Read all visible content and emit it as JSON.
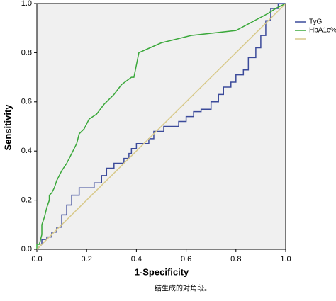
{
  "chart_data": {
    "type": "line",
    "xlabel": "1-Specificity",
    "ylabel": "Sensitivity",
    "caption": "结生成的对角段。",
    "xlim": [
      0,
      1
    ],
    "ylim": [
      0,
      1
    ],
    "xticks": [
      {
        "value": 0,
        "label": "0.0"
      },
      0.2,
      0.4,
      0.6,
      0.8,
      {
        "value": 1,
        "label": "1.0"
      }
    ],
    "yticks": [
      {
        "value": 0,
        "label": "0.0"
      },
      0.2,
      0.4,
      0.6,
      0.8,
      {
        "value": 1,
        "label": "1.0"
      }
    ],
    "series": [
      {
        "name": "TyG",
        "color": "#3b4a9a",
        "x": [
          0,
          0.02,
          0.02,
          0.04,
          0.04,
          0.06,
          0.06,
          0.08,
          0.08,
          0.1,
          0.1,
          0.12,
          0.12,
          0.14,
          0.14,
          0.17,
          0.17,
          0.23,
          0.23,
          0.26,
          0.26,
          0.28,
          0.28,
          0.31,
          0.31,
          0.35,
          0.35,
          0.37,
          0.37,
          0.38,
          0.38,
          0.4,
          0.4,
          0.45,
          0.45,
          0.47,
          0.47,
          0.51,
          0.51,
          0.57,
          0.57,
          0.6,
          0.6,
          0.63,
          0.63,
          0.66,
          0.66,
          0.7,
          0.7,
          0.73,
          0.73,
          0.75,
          0.75,
          0.78,
          0.78,
          0.8,
          0.8,
          0.83,
          0.83,
          0.85,
          0.85,
          0.88,
          0.88,
          0.9,
          0.9,
          0.92,
          0.92,
          0.94,
          0.94,
          0.97,
          0.97,
          1
        ],
        "values": [
          0,
          0.02,
          0.04,
          0.04,
          0.05,
          0.05,
          0.07,
          0.07,
          0.09,
          0.09,
          0.14,
          0.14,
          0.18,
          0.18,
          0.22,
          0.22,
          0.25,
          0.25,
          0.27,
          0.27,
          0.3,
          0.3,
          0.33,
          0.33,
          0.35,
          0.35,
          0.37,
          0.37,
          0.39,
          0.39,
          0.41,
          0.41,
          0.43,
          0.43,
          0.45,
          0.45,
          0.48,
          0.48,
          0.5,
          0.5,
          0.52,
          0.52,
          0.54,
          0.54,
          0.56,
          0.56,
          0.57,
          0.57,
          0.6,
          0.6,
          0.63,
          0.63,
          0.66,
          0.66,
          0.68,
          0.68,
          0.71,
          0.71,
          0.73,
          0.73,
          0.78,
          0.78,
          0.82,
          0.82,
          0.87,
          0.87,
          0.93,
          0.93,
          0.98,
          0.98,
          1,
          1
        ]
      },
      {
        "name": "HbA1c%",
        "color": "#3aa83a",
        "x": [
          0,
          0,
          0.01,
          0.02,
          0.02,
          0.03,
          0.04,
          0.05,
          0.05,
          0.06,
          0.07,
          0.08,
          0.1,
          0.12,
          0.14,
          0.16,
          0.17,
          0.19,
          0.21,
          0.24,
          0.27,
          0.31,
          0.34,
          0.38,
          0.39,
          0.41,
          0.5,
          0.62,
          0.8,
          0.93,
          0.96,
          0.98,
          1
        ],
        "values": [
          0,
          0.02,
          0.02,
          0.06,
          0.1,
          0.13,
          0.17,
          0.2,
          0.22,
          0.23,
          0.25,
          0.28,
          0.32,
          0.35,
          0.39,
          0.43,
          0.47,
          0.49,
          0.53,
          0.55,
          0.59,
          0.63,
          0.67,
          0.7,
          0.7,
          0.8,
          0.84,
          0.87,
          0.89,
          0.96,
          0.98,
          0.99,
          1
        ]
      },
      {
        "color": "#d8c98a",
        "x": [
          0,
          1
        ],
        "values": [
          0,
          1
        ]
      }
    ]
  }
}
